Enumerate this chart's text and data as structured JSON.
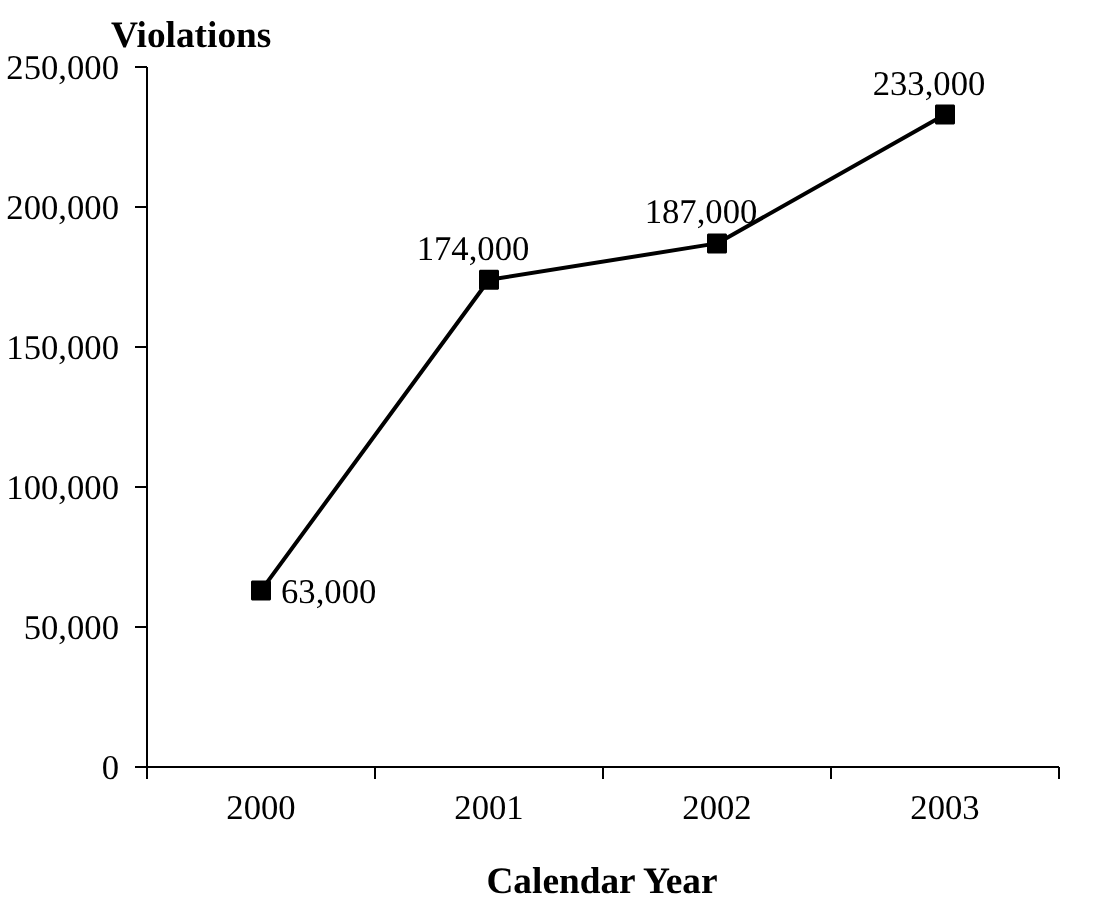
{
  "chart_data": {
    "type": "line",
    "ylabel": "Violations",
    "xlabel": "Calendar Year",
    "categories": [
      "2000",
      "2001",
      "2002",
      "2003"
    ],
    "series": [
      {
        "color": "#000000",
        "values": [
          63000,
          174000,
          187000,
          233000
        ],
        "value_labels": [
          "63,000",
          "174,000",
          "187,000",
          "233,000"
        ]
      }
    ],
    "ylim": [
      0,
      250000
    ],
    "yticks": [
      0,
      {
        "value": 50000,
        "label": "50,000"
      },
      {
        "value": 100000,
        "label": "100,000"
      },
      {
        "value": 150000,
        "label": "150,000"
      },
      {
        "value": 200000,
        "label": "200,000"
      },
      {
        "value": 250000,
        "label": "250,000"
      }
    ],
    "marker": "square",
    "line_style": "solid"
  }
}
